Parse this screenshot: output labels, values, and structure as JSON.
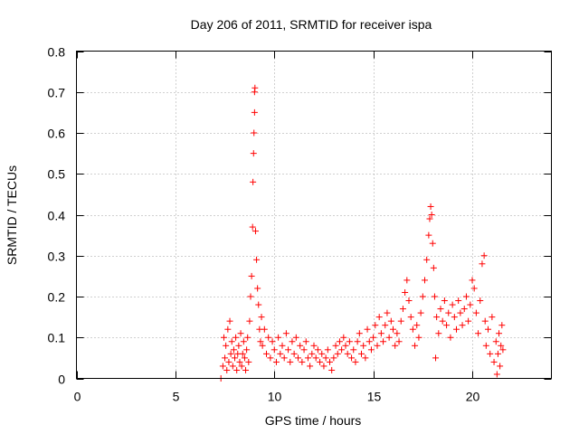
{
  "chart_data": {
    "type": "scatter",
    "title": "Day 206 of 2011, SRMTID for receiver ispa",
    "xlabel": "GPS time / hours",
    "ylabel": "SRMTID / TECUs",
    "xlim": [
      0,
      24
    ],
    "ylim": [
      0,
      0.8
    ],
    "xticks": [
      0,
      5,
      10,
      15,
      20
    ],
    "yticks": [
      0,
      0.1,
      0.2,
      0.3,
      0.4,
      0.5,
      0.6,
      0.7,
      0.8
    ],
    "grid": true,
    "marker": "+",
    "marker_color": "#ff0000",
    "series": [
      {
        "name": "SRMTID",
        "points": [
          [
            7.3,
            0.0
          ],
          [
            7.4,
            0.03
          ],
          [
            7.45,
            0.1
          ],
          [
            7.5,
            0.05
          ],
          [
            7.55,
            0.08
          ],
          [
            7.6,
            0.02
          ],
          [
            7.65,
            0.12
          ],
          [
            7.7,
            0.04
          ],
          [
            7.75,
            0.14
          ],
          [
            7.8,
            0.06
          ],
          [
            7.85,
            0.09
          ],
          [
            7.9,
            0.03
          ],
          [
            7.95,
            0.07
          ],
          [
            8.0,
            0.05
          ],
          [
            8.05,
            0.1
          ],
          [
            8.1,
            0.02
          ],
          [
            8.15,
            0.06
          ],
          [
            8.2,
            0.08
          ],
          [
            8.25,
            0.04
          ],
          [
            8.3,
            0.11
          ],
          [
            8.35,
            0.03
          ],
          [
            8.4,
            0.06
          ],
          [
            8.45,
            0.09
          ],
          [
            8.5,
            0.05
          ],
          [
            8.55,
            0.02
          ],
          [
            8.6,
            0.07
          ],
          [
            8.65,
            0.1
          ],
          [
            8.7,
            0.04
          ],
          [
            8.75,
            0.14
          ],
          [
            8.8,
            0.2
          ],
          [
            8.85,
            0.25
          ],
          [
            8.9,
            0.37
          ],
          [
            8.92,
            0.48
          ],
          [
            8.95,
            0.55
          ],
          [
            8.97,
            0.6
          ],
          [
            9.0,
            0.65
          ],
          [
            9.0,
            0.7
          ],
          [
            9.02,
            0.71
          ],
          [
            9.05,
            0.36
          ],
          [
            9.1,
            0.29
          ],
          [
            9.15,
            0.22
          ],
          [
            9.2,
            0.18
          ],
          [
            9.25,
            0.12
          ],
          [
            9.3,
            0.09
          ],
          [
            9.35,
            0.15
          ],
          [
            9.4,
            0.08
          ],
          [
            9.5,
            0.12
          ],
          [
            9.6,
            0.06
          ],
          [
            9.7,
            0.1
          ],
          [
            9.8,
            0.05
          ],
          [
            9.9,
            0.09
          ],
          [
            10.0,
            0.07
          ],
          [
            10.1,
            0.04
          ],
          [
            10.2,
            0.1
          ],
          [
            10.3,
            0.06
          ],
          [
            10.4,
            0.08
          ],
          [
            10.5,
            0.05
          ],
          [
            10.6,
            0.11
          ],
          [
            10.7,
            0.07
          ],
          [
            10.8,
            0.04
          ],
          [
            10.9,
            0.09
          ],
          [
            11.0,
            0.06
          ],
          [
            11.1,
            0.1
          ],
          [
            11.2,
            0.05
          ],
          [
            11.3,
            0.08
          ],
          [
            11.4,
            0.04
          ],
          [
            11.5,
            0.07
          ],
          [
            11.6,
            0.09
          ],
          [
            11.7,
            0.05
          ],
          [
            11.8,
            0.03
          ],
          [
            11.9,
            0.06
          ],
          [
            12.0,
            0.08
          ],
          [
            12.1,
            0.05
          ],
          [
            12.2,
            0.07
          ],
          [
            12.3,
            0.04
          ],
          [
            12.4,
            0.06
          ],
          [
            12.5,
            0.03
          ],
          [
            12.6,
            0.05
          ],
          [
            12.7,
            0.07
          ],
          [
            12.8,
            0.04
          ],
          [
            12.9,
            0.02
          ],
          [
            13.0,
            0.05
          ],
          [
            13.1,
            0.08
          ],
          [
            13.2,
            0.06
          ],
          [
            13.3,
            0.09
          ],
          [
            13.4,
            0.07
          ],
          [
            13.5,
            0.1
          ],
          [
            13.6,
            0.08
          ],
          [
            13.7,
            0.06
          ],
          [
            13.8,
            0.09
          ],
          [
            13.9,
            0.05
          ],
          [
            14.0,
            0.07
          ],
          [
            14.1,
            0.04
          ],
          [
            14.2,
            0.09
          ],
          [
            14.3,
            0.11
          ],
          [
            14.4,
            0.06
          ],
          [
            14.5,
            0.08
          ],
          [
            14.6,
            0.05
          ],
          [
            14.7,
            0.12
          ],
          [
            14.8,
            0.09
          ],
          [
            14.9,
            0.07
          ],
          [
            15.0,
            0.1
          ],
          [
            15.1,
            0.13
          ],
          [
            15.2,
            0.08
          ],
          [
            15.3,
            0.15
          ],
          [
            15.4,
            0.11
          ],
          [
            15.5,
            0.09
          ],
          [
            15.6,
            0.13
          ],
          [
            15.7,
            0.16
          ],
          [
            15.8,
            0.1
          ],
          [
            15.9,
            0.14
          ],
          [
            16.0,
            0.12
          ],
          [
            16.1,
            0.08
          ],
          [
            16.2,
            0.11
          ],
          [
            16.3,
            0.09
          ],
          [
            16.4,
            0.14
          ],
          [
            16.5,
            0.17
          ],
          [
            16.6,
            0.21
          ],
          [
            16.7,
            0.24
          ],
          [
            16.8,
            0.19
          ],
          [
            16.9,
            0.15
          ],
          [
            17.0,
            0.12
          ],
          [
            17.1,
            0.08
          ],
          [
            17.2,
            0.13
          ],
          [
            17.3,
            0.1
          ],
          [
            17.4,
            0.16
          ],
          [
            17.5,
            0.2
          ],
          [
            17.6,
            0.24
          ],
          [
            17.7,
            0.29
          ],
          [
            17.8,
            0.35
          ],
          [
            17.85,
            0.39
          ],
          [
            17.9,
            0.42
          ],
          [
            17.95,
            0.4
          ],
          [
            18.0,
            0.33
          ],
          [
            18.05,
            0.27
          ],
          [
            18.1,
            0.2
          ],
          [
            18.15,
            0.05
          ],
          [
            18.2,
            0.15
          ],
          [
            18.3,
            0.11
          ],
          [
            18.4,
            0.17
          ],
          [
            18.5,
            0.14
          ],
          [
            18.6,
            0.19
          ],
          [
            18.7,
            0.13
          ],
          [
            18.8,
            0.16
          ],
          [
            18.9,
            0.1
          ],
          [
            19.0,
            0.18
          ],
          [
            19.1,
            0.15
          ],
          [
            19.2,
            0.12
          ],
          [
            19.3,
            0.19
          ],
          [
            19.4,
            0.16
          ],
          [
            19.5,
            0.13
          ],
          [
            19.6,
            0.17
          ],
          [
            19.7,
            0.2
          ],
          [
            19.8,
            0.14
          ],
          [
            19.9,
            0.18
          ],
          [
            20.0,
            0.24
          ],
          [
            20.1,
            0.22
          ],
          [
            20.2,
            0.16
          ],
          [
            20.3,
            0.11
          ],
          [
            20.4,
            0.19
          ],
          [
            20.5,
            0.28
          ],
          [
            20.6,
            0.3
          ],
          [
            20.65,
            0.14
          ],
          [
            20.7,
            0.08
          ],
          [
            20.8,
            0.12
          ],
          [
            20.9,
            0.06
          ],
          [
            21.0,
            0.15
          ],
          [
            21.1,
            0.04
          ],
          [
            21.2,
            0.09
          ],
          [
            21.25,
            0.01
          ],
          [
            21.3,
            0.06
          ],
          [
            21.35,
            0.11
          ],
          [
            21.4,
            0.03
          ],
          [
            21.45,
            0.08
          ],
          [
            21.5,
            0.13
          ],
          [
            21.55,
            0.07
          ]
        ]
      }
    ]
  }
}
